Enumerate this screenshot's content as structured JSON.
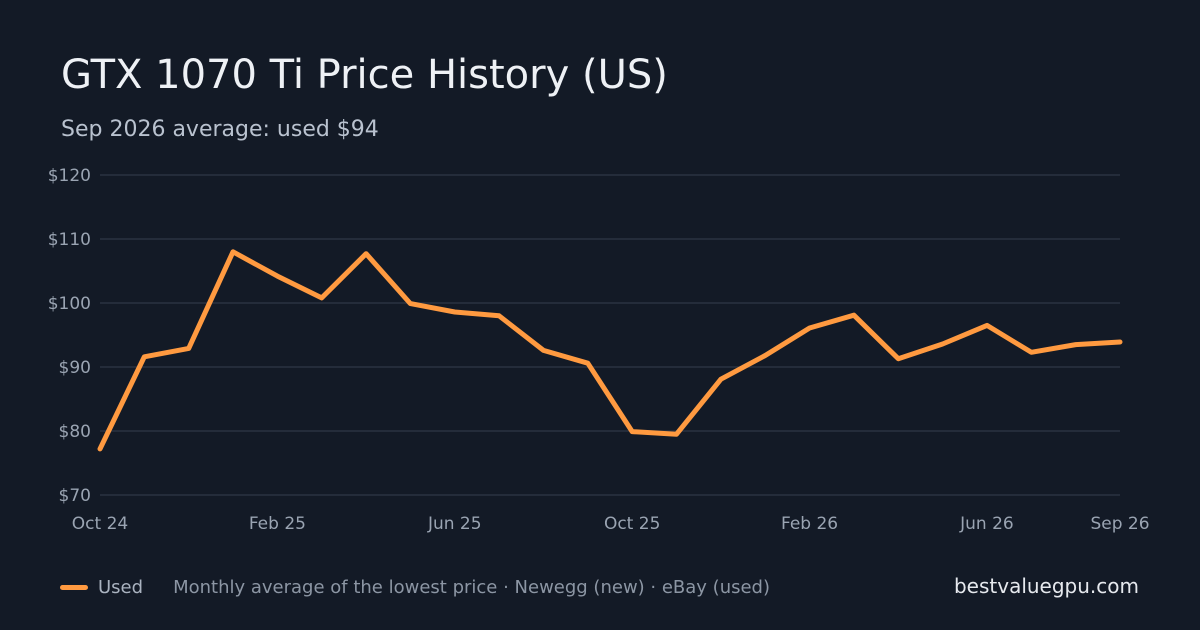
{
  "header": {
    "title": "GTX 1070 Ti Price History (US)",
    "subtitle": "Sep 2026 average: used $94"
  },
  "footer": {
    "legend_label": "Used",
    "note": "Monthly average of the lowest price · Newegg (new) · eBay (used)",
    "brand": "bestvaluegpu.com"
  },
  "colors": {
    "background": "#131a26",
    "series_used": "#ff9a40",
    "grid": "#2a3240"
  },
  "chart_data": {
    "type": "line",
    "title": "GTX 1070 Ti Price History (US)",
    "subtitle": "Sep 2026 average: used $94",
    "xlabel": "",
    "ylabel": "",
    "ylim": [
      70,
      120
    ],
    "yticks": [
      70,
      80,
      90,
      100,
      110,
      120
    ],
    "ytick_labels": [
      "$70",
      "$80",
      "$90",
      "$100",
      "$110",
      "$120"
    ],
    "x": [
      "2024-10",
      "2024-11",
      "2024-12",
      "2025-01",
      "2025-02",
      "2025-03",
      "2025-04",
      "2025-05",
      "2025-06",
      "2025-07",
      "2025-08",
      "2025-09",
      "2025-10",
      "2025-11",
      "2025-12",
      "2026-01",
      "2026-02",
      "2026-03",
      "2026-04",
      "2026-05",
      "2026-06",
      "2026-07",
      "2026-08",
      "2026-09"
    ],
    "xticks": [
      {
        "x": "2024-10",
        "label": "Oct 24"
      },
      {
        "x": "2025-02",
        "label": "Feb 25"
      },
      {
        "x": "2025-06",
        "label": "Jun 25"
      },
      {
        "x": "2025-10",
        "label": "Oct 25"
      },
      {
        "x": "2026-02",
        "label": "Feb 26"
      },
      {
        "x": "2026-06",
        "label": "Jun 26"
      },
      {
        "x": "2026-09",
        "label": "Sep 26"
      }
    ],
    "series": [
      {
        "name": "Used",
        "color": "#ff9a40",
        "values": [
          77.2,
          91.6,
          92.9,
          108.0,
          104.2,
          100.8,
          107.7,
          99.9,
          98.6,
          98.0,
          92.6,
          90.6,
          79.9,
          79.5,
          88.1,
          91.8,
          96.1,
          98.1,
          91.3,
          93.6,
          96.5,
          92.3,
          93.5,
          93.9
        ]
      }
    ],
    "grid": true,
    "legend_position": "bottom-left"
  }
}
